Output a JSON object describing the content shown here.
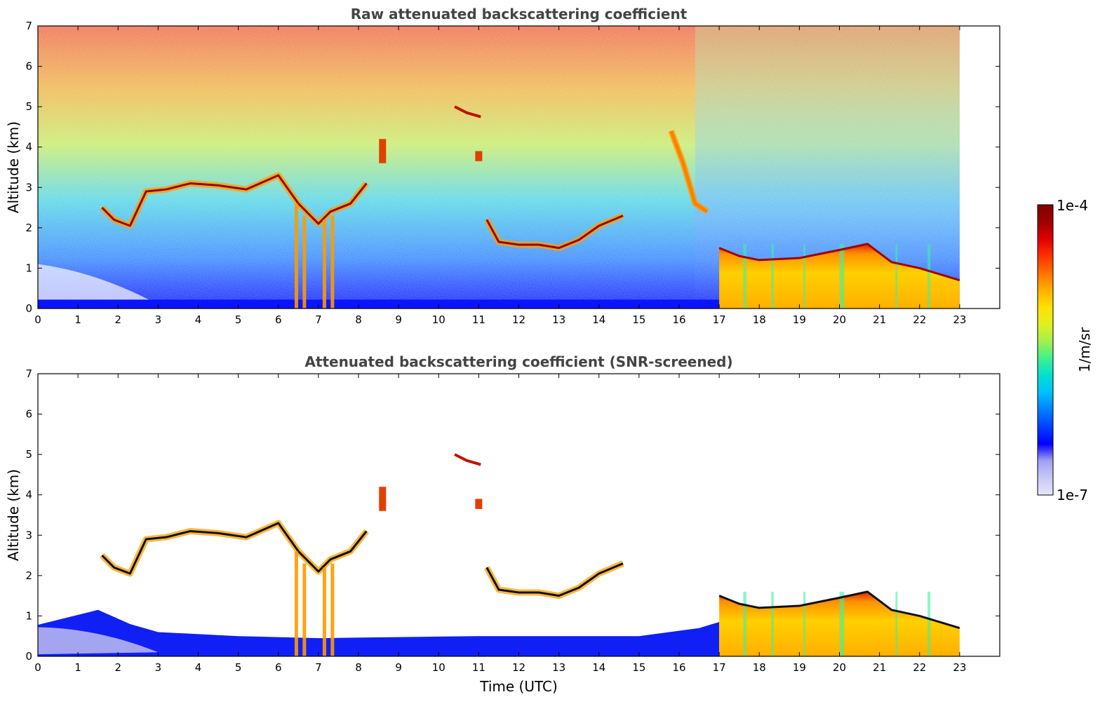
{
  "chart_data": [
    {
      "type": "heatmap",
      "title": "Raw attenuated backscattering coefficient",
      "xlabel": "",
      "ylabel": "Altitude (km)",
      "xlim": [
        0,
        24
      ],
      "ylim": [
        0,
        7
      ],
      "x_ticks": [
        "0",
        "1",
        "2",
        "3",
        "4",
        "5",
        "6",
        "7",
        "8",
        "9",
        "10",
        "11",
        "12",
        "13",
        "14",
        "15",
        "16",
        "17",
        "18",
        "19",
        "20",
        "21",
        "22",
        "23"
      ],
      "y_ticks": [
        "0",
        "1",
        "2",
        "3",
        "4",
        "5",
        "6",
        "7"
      ],
      "data_end_time": 23,
      "features": [
        {
          "kind": "layer",
          "name": "mid-level cloud",
          "points": [
            [
              1.6,
              2.5
            ],
            [
              1.9,
              2.2
            ],
            [
              2.3,
              2.05
            ],
            [
              2.7,
              2.9
            ],
            [
              3.2,
              2.95
            ],
            [
              3.8,
              3.1
            ],
            [
              4.5,
              3.05
            ],
            [
              5.2,
              2.95
            ],
            [
              6.0,
              3.3
            ],
            [
              6.5,
              2.6
            ],
            [
              7.0,
              2.1
            ],
            [
              7.3,
              2.4
            ],
            [
              7.8,
              2.6
            ],
            [
              8.2,
              3.1
            ]
          ]
        },
        {
          "kind": "layer",
          "name": "boundary-layer cloud",
          "points": [
            [
              11.2,
              2.2
            ],
            [
              11.5,
              1.65
            ],
            [
              12.0,
              1.58
            ],
            [
              12.5,
              1.58
            ],
            [
              13.0,
              1.5
            ],
            [
              13.5,
              1.7
            ],
            [
              14.0,
              2.05
            ],
            [
              14.6,
              2.3
            ]
          ]
        },
        {
          "kind": "layer",
          "name": "low cloud top",
          "points": [
            [
              17.0,
              1.5
            ],
            [
              17.5,
              1.3
            ],
            [
              18.0,
              1.2
            ],
            [
              19.0,
              1.25
            ],
            [
              20.0,
              1.45
            ],
            [
              20.7,
              1.6
            ],
            [
              21.3,
              1.15
            ],
            [
              22.0,
              1.0
            ],
            [
              23.0,
              0.7
            ]
          ]
        },
        {
          "kind": "layer",
          "name": "fall streak",
          "points": [
            [
              15.8,
              4.4
            ],
            [
              16.1,
              3.6
            ],
            [
              16.4,
              2.6
            ],
            [
              16.7,
              2.4
            ]
          ]
        }
      ]
    },
    {
      "type": "heatmap",
      "title": "Attenuated backscattering coefficient (SNR-screened)",
      "xlabel": "Time (UTC)",
      "ylabel": "Altitude (km)",
      "xlim": [
        0,
        24
      ],
      "ylim": [
        0,
        7
      ],
      "x_ticks": [
        "0",
        "1",
        "2",
        "3",
        "4",
        "5",
        "6",
        "7",
        "8",
        "9",
        "10",
        "11",
        "12",
        "13",
        "14",
        "15",
        "16",
        "17",
        "18",
        "19",
        "20",
        "21",
        "22",
        "23"
      ],
      "y_ticks": [
        "0",
        "1",
        "2",
        "3",
        "4",
        "5",
        "6",
        "7"
      ],
      "data_end_time": 23,
      "features": [
        {
          "kind": "layer",
          "name": "mid-level cloud",
          "points": [
            [
              1.6,
              2.5
            ],
            [
              1.9,
              2.2
            ],
            [
              2.3,
              2.05
            ],
            [
              2.7,
              2.9
            ],
            [
              3.2,
              2.95
            ],
            [
              3.8,
              3.1
            ],
            [
              4.5,
              3.05
            ],
            [
              5.2,
              2.95
            ],
            [
              6.0,
              3.3
            ],
            [
              6.5,
              2.6
            ],
            [
              7.0,
              2.1
            ],
            [
              7.3,
              2.4
            ],
            [
              7.8,
              2.6
            ],
            [
              8.2,
              3.1
            ]
          ]
        },
        {
          "kind": "layer",
          "name": "boundary-layer cloud",
          "points": [
            [
              11.2,
              2.2
            ],
            [
              11.5,
              1.65
            ],
            [
              12.0,
              1.58
            ],
            [
              12.5,
              1.58
            ],
            [
              13.0,
              1.5
            ],
            [
              13.5,
              1.7
            ],
            [
              14.0,
              2.05
            ],
            [
              14.6,
              2.3
            ]
          ]
        },
        {
          "kind": "layer",
          "name": "low cloud top",
          "points": [
            [
              17.0,
              1.5
            ],
            [
              17.5,
              1.3
            ],
            [
              18.0,
              1.2
            ],
            [
              19.0,
              1.25
            ],
            [
              20.0,
              1.45
            ],
            [
              20.7,
              1.6
            ],
            [
              21.3,
              1.15
            ],
            [
              22.0,
              1.0
            ],
            [
              23.0,
              0.7
            ]
          ]
        }
      ]
    }
  ],
  "colorbar": {
    "label": "1/m/sr",
    "max_label": "1e-4",
    "min_label": "1e-7",
    "scale": "log",
    "colormap": "jet",
    "colors": [
      "#e6e6fa",
      "#c8c8f5",
      "#a0a0f0",
      "#0000ff",
      "#0040ff",
      "#0080ff",
      "#00c0ff",
      "#00e0d0",
      "#40f090",
      "#a0f050",
      "#e0f020",
      "#ffe000",
      "#ffb000",
      "#ff7000",
      "#ff3000",
      "#e00000",
      "#a00000",
      "#800000"
    ]
  }
}
